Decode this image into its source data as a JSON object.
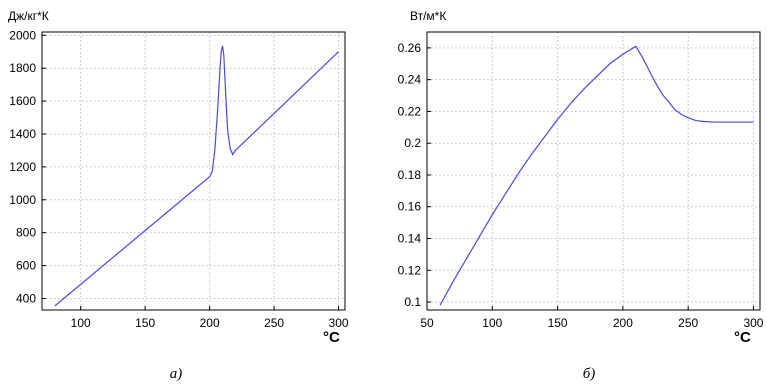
{
  "chart_data": [
    {
      "type": "line",
      "ylabel": "Дж/кг*К",
      "xlabel": "°C",
      "caption": "а)",
      "xlim": [
        70,
        305
      ],
      "ylim": [
        330,
        2020
      ],
      "xticks": [
        100,
        150,
        200,
        250,
        300
      ],
      "yticks": [
        400,
        600,
        800,
        1000,
        1200,
        1400,
        1600,
        1800,
        2000
      ],
      "grid": true,
      "series": [
        {
          "color": "#4b4bd6",
          "x": [
            80,
            200,
            202,
            204,
            206,
            207,
            208,
            209,
            210,
            211,
            212,
            213,
            214,
            216,
            218,
            220,
            300
          ],
          "y": [
            355,
            1140,
            1170,
            1300,
            1520,
            1650,
            1790,
            1900,
            1935,
            1880,
            1720,
            1560,
            1420,
            1310,
            1275,
            1300,
            1900
          ]
        }
      ]
    },
    {
      "type": "line",
      "ylabel": "Вт/м*К",
      "xlabel": "°C",
      "caption": "б)",
      "xlim": [
        50,
        305
      ],
      "ylim": [
        0.095,
        0.27
      ],
      "xticks": [
        50,
        100,
        150,
        200,
        250,
        300
      ],
      "yticks": [
        0.1,
        0.12,
        0.14,
        0.16,
        0.18,
        0.2,
        0.22,
        0.24,
        0.26
      ],
      "grid": true,
      "series": [
        {
          "color": "#4b4bd6",
          "x": [
            60,
            70,
            80,
            90,
            100,
            110,
            120,
            130,
            140,
            150,
            160,
            170,
            180,
            190,
            200,
            210,
            215,
            220,
            225,
            230,
            235,
            240,
            245,
            250,
            255,
            260,
            265,
            270,
            275,
            280,
            290,
            300
          ],
          "y": [
            0.098,
            0.113,
            0.127,
            0.141,
            0.155,
            0.168,
            0.181,
            0.193,
            0.204,
            0.215,
            0.225,
            0.234,
            0.242,
            0.25,
            0.256,
            0.261,
            0.254,
            0.246,
            0.238,
            0.231,
            0.226,
            0.221,
            0.218,
            0.216,
            0.2145,
            0.2138,
            0.2135,
            0.2133,
            0.2133,
            0.2133,
            0.2133,
            0.2133
          ]
        }
      ]
    }
  ]
}
